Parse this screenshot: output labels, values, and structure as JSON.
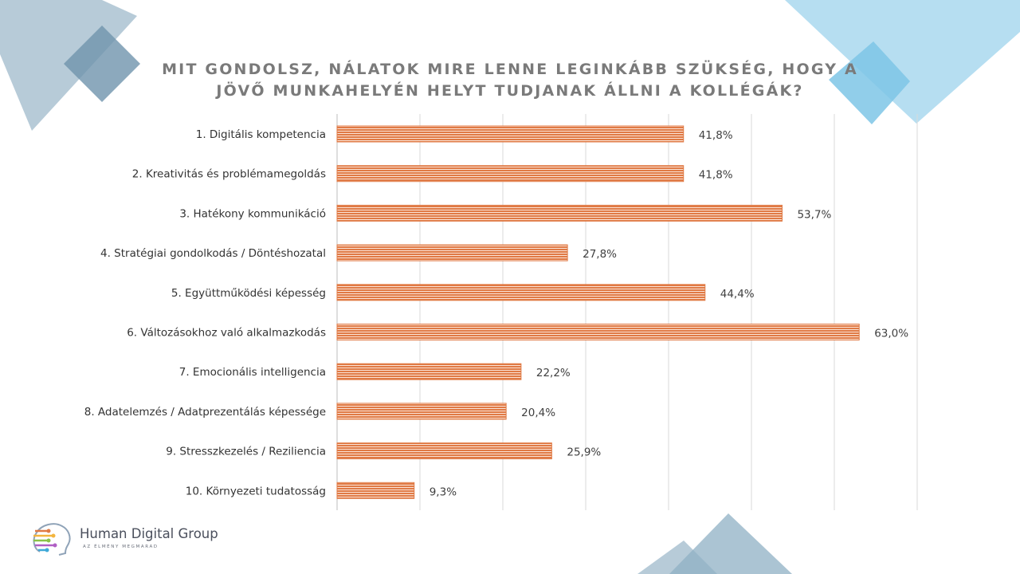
{
  "title": {
    "line1": "MIT GONDOLSZ, NÁLATOK MIRE LENNE LEGINKÁBB SZÜKSÉG, HOGY A",
    "line2": "JÖVŐ MUNKAHELYÉN HELYT TUDJANAK ÁLLNI A KOLLÉGÁK?"
  },
  "chart_data": {
    "type": "bar",
    "orientation": "horizontal",
    "title": "MIT GONDOLSZ, NÁLATOK MIRE LENNE LEGINKÁBB SZÜKSÉG, HOGY A JÖVŐ MUNKAHELYÉN HELYT TUDJANAK ÁLLNI A KOLLÉGÁK?",
    "categories": [
      "1. Digitális kompetencia",
      "2. Kreativitás és problémamegoldás",
      "3. Hatékony kommunikáció",
      "4. Stratégiai gondolkodás / Döntéshozatal",
      "5. Együttműködési képesség",
      "6. Változásokhoz való alkalmazkodás",
      "7. Emocionális intelligencia",
      "8. Adatelemzés / Adatprezentálás képessége",
      "9. Stresszkezelés / Reziliencia",
      "10. Környezeti tudatosság"
    ],
    "values": [
      41.8,
      41.8,
      53.7,
      27.8,
      44.4,
      63.0,
      22.2,
      20.4,
      25.9,
      9.3
    ],
    "value_labels": [
      "41,8%",
      "41,8%",
      "53,7%",
      "27,8%",
      "44,4%",
      "63,0%",
      "22,2%",
      "20,4%",
      "25,9%",
      "9,3%"
    ],
    "xlim": [
      0,
      70
    ],
    "gridline_step": 10,
    "grid": true,
    "bar_color": "#e07a45",
    "bar_stripe_color": "#ffffff"
  },
  "logo": {
    "name": "Human Digital Group",
    "tagline": "AZ ÉLMÉNY MEGMARAD"
  },
  "colors": {
    "decor_light_blue": "#a9d8ee",
    "decor_steel_blue": "#8fb0c4",
    "title_gray": "#7a7a7a"
  }
}
